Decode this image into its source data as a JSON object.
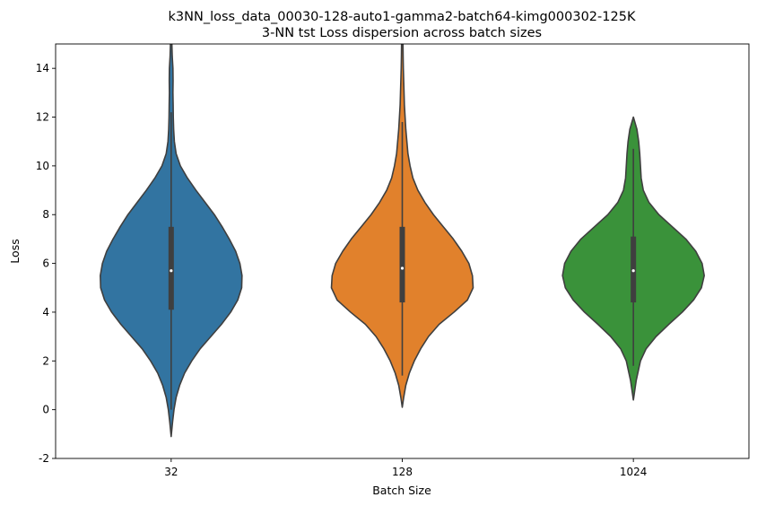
{
  "chart_data": {
    "type": "violin",
    "title": "k3NN_loss_data_00030-128-auto1-gamma2-batch64-kimg000302-125K",
    "subtitle": "3-NN tst Loss dispersion across batch sizes",
    "xlabel": "Batch Size",
    "ylabel": "Loss",
    "categories": [
      "32",
      "128",
      "1024"
    ],
    "ylim": [
      -2,
      15
    ],
    "yticks": [
      -2,
      0,
      2,
      4,
      6,
      8,
      10,
      12,
      14
    ],
    "grid": false,
    "colors": [
      "#3274a1",
      "#e1812c",
      "#3a923a"
    ],
    "violins": [
      {
        "category": "32",
        "median": 5.7,
        "q1": 4.1,
        "q3": 7.5,
        "whisker_low": 0.0,
        "whisker_high": 12.2,
        "profile": [
          [
            -1.1,
            0.0
          ],
          [
            -0.5,
            0.02
          ],
          [
            0.0,
            0.04
          ],
          [
            0.5,
            0.07
          ],
          [
            1.0,
            0.12
          ],
          [
            1.5,
            0.19
          ],
          [
            2.0,
            0.29
          ],
          [
            2.5,
            0.41
          ],
          [
            3.0,
            0.56
          ],
          [
            3.5,
            0.71
          ],
          [
            4.0,
            0.84
          ],
          [
            4.5,
            0.94
          ],
          [
            5.0,
            0.995
          ],
          [
            5.5,
            1.0
          ],
          [
            6.0,
            0.97
          ],
          [
            6.5,
            0.91
          ],
          [
            7.0,
            0.82
          ],
          [
            7.5,
            0.72
          ],
          [
            8.0,
            0.61
          ],
          [
            8.5,
            0.48
          ],
          [
            9.0,
            0.35
          ],
          [
            9.5,
            0.23
          ],
          [
            10.0,
            0.13
          ],
          [
            10.5,
            0.07
          ],
          [
            11.0,
            0.045
          ],
          [
            11.5,
            0.035
          ],
          [
            12.0,
            0.03
          ],
          [
            12.5,
            0.028
          ],
          [
            13.0,
            0.025
          ],
          [
            13.5,
            0.027
          ],
          [
            14.0,
            0.025
          ],
          [
            14.5,
            0.015
          ],
          [
            15.0,
            0.01
          ]
        ]
      },
      {
        "category": "128",
        "median": 5.8,
        "q1": 4.4,
        "q3": 7.5,
        "whisker_low": 1.4,
        "whisker_high": 11.8,
        "profile": [
          [
            0.1,
            0.0
          ],
          [
            0.5,
            0.02
          ],
          [
            1.0,
            0.05
          ],
          [
            1.5,
            0.1
          ],
          [
            2.0,
            0.17
          ],
          [
            2.5,
            0.26
          ],
          [
            3.0,
            0.37
          ],
          [
            3.5,
            0.52
          ],
          [
            4.0,
            0.73
          ],
          [
            4.5,
            0.92
          ],
          [
            5.0,
            1.0
          ],
          [
            5.5,
            0.99
          ],
          [
            6.0,
            0.94
          ],
          [
            6.5,
            0.84
          ],
          [
            7.0,
            0.72
          ],
          [
            7.5,
            0.58
          ],
          [
            8.0,
            0.44
          ],
          [
            8.5,
            0.32
          ],
          [
            9.0,
            0.22
          ],
          [
            9.5,
            0.15
          ],
          [
            10.0,
            0.11
          ],
          [
            10.5,
            0.08
          ],
          [
            11.0,
            0.065
          ],
          [
            11.5,
            0.05
          ],
          [
            12.0,
            0.04
          ],
          [
            12.5,
            0.03
          ],
          [
            13.0,
            0.025
          ],
          [
            13.5,
            0.02
          ],
          [
            14.0,
            0.015
          ],
          [
            14.5,
            0.012
          ],
          [
            15.0,
            0.01
          ]
        ]
      },
      {
        "category": "1024",
        "median": 5.7,
        "q1": 4.4,
        "q3": 7.1,
        "whisker_low": 1.8,
        "whisker_high": 10.7,
        "profile": [
          [
            0.4,
            0.0
          ],
          [
            0.8,
            0.02
          ],
          [
            1.2,
            0.04
          ],
          [
            1.6,
            0.07
          ],
          [
            2.0,
            0.1
          ],
          [
            2.5,
            0.18
          ],
          [
            3.0,
            0.32
          ],
          [
            3.5,
            0.5
          ],
          [
            4.0,
            0.69
          ],
          [
            4.5,
            0.85
          ],
          [
            5.0,
            0.96
          ],
          [
            5.5,
            1.0
          ],
          [
            6.0,
            0.97
          ],
          [
            6.5,
            0.88
          ],
          [
            7.0,
            0.74
          ],
          [
            7.5,
            0.55
          ],
          [
            8.0,
            0.36
          ],
          [
            8.5,
            0.22
          ],
          [
            9.0,
            0.14
          ],
          [
            9.5,
            0.11
          ],
          [
            10.0,
            0.1
          ],
          [
            10.5,
            0.09
          ],
          [
            11.0,
            0.075
          ],
          [
            11.5,
            0.05
          ],
          [
            12.0,
            0.0
          ]
        ]
      }
    ]
  }
}
